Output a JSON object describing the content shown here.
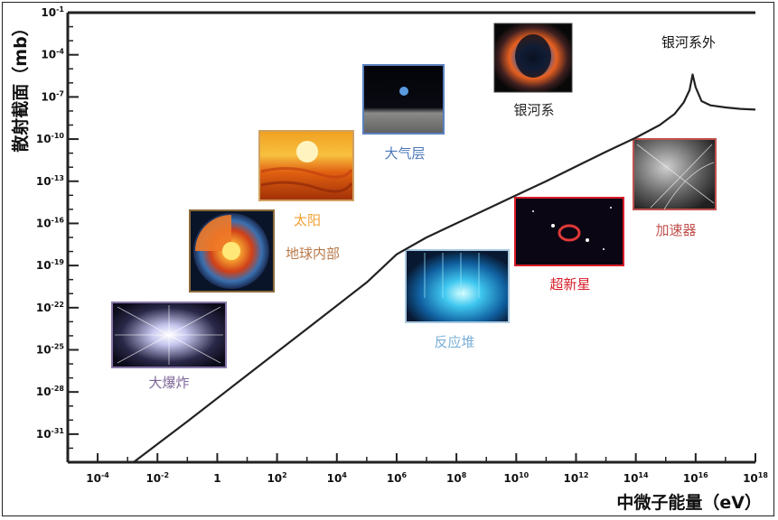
{
  "chart_data": {
    "type": "line",
    "xlabel": "中微子能量（eV）",
    "ylabel": "散射截面（mb）",
    "x_scale": "log",
    "y_scale": "log",
    "xlim_exponent": [
      -5,
      18
    ],
    "ylim_exponent": [
      -33,
      -1
    ],
    "x_ticks": [
      "10-4",
      "10-2",
      "1",
      "102",
      "104",
      "106",
      "108",
      "1010",
      "1012",
      "1014",
      "1016",
      "1018"
    ],
    "x_tick_exponents": [
      -4,
      -2,
      0,
      2,
      4,
      6,
      8,
      10,
      12,
      14,
      16,
      18
    ],
    "y_ticks": [
      "10-1",
      "10-4",
      "10-7",
      "10-10",
      "10-13",
      "10-16",
      "10-19",
      "10-22",
      "10-25",
      "10-28",
      "10-31"
    ],
    "y_tick_exponents": [
      -1,
      -4,
      -7,
      -10,
      -13,
      -16,
      -19,
      -22,
      -25,
      -28,
      -31
    ],
    "grid": false,
    "series": [
      {
        "x_log": [
          -2.8,
          -1,
          1,
          3,
          5,
          6,
          7,
          8,
          9,
          10,
          11,
          12,
          13,
          14,
          14.8,
          15.3,
          15.6,
          15.8,
          15.9,
          16.0,
          16.2,
          16.5,
          17,
          17.5,
          18
        ],
        "y_log": [
          -33,
          -30.1,
          -26.8,
          -23.5,
          -20.2,
          -18.2,
          -17.0,
          -16.0,
          -15.0,
          -14.0,
          -13.0,
          -11.95,
          -10.9,
          -9.9,
          -9.0,
          -8.2,
          -7.4,
          -6.5,
          -5.4,
          -6.3,
          -7.3,
          -7.6,
          -7.75,
          -7.85,
          -7.9
        ]
      }
    ],
    "sources": [
      {
        "label": "大爆炸",
        "color": "#7d6698"
      },
      {
        "label": "地球内部",
        "color": "#b8794a"
      },
      {
        "label": "太阳",
        "color": "#f0a030"
      },
      {
        "label": "大气层",
        "color": "#4a78b8"
      },
      {
        "label": "银河系",
        "color": "#222222"
      },
      {
        "label": "反应堆",
        "color": "#7ab0d8"
      },
      {
        "label": "超新星",
        "color": "#d81c28"
      },
      {
        "label": "加速器",
        "color": "#c0504d"
      },
      {
        "label": "银河系外",
        "color": "#111111"
      }
    ]
  }
}
